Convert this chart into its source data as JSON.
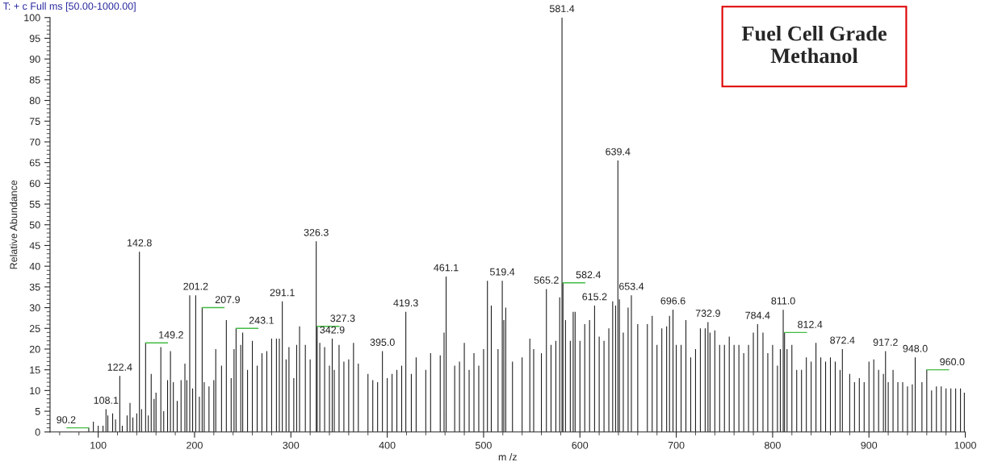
{
  "chart_data": {
    "type": "bar",
    "xlabel": "m /z",
    "ylabel": "Relative Abundance",
    "annotations": [
      "T: + c Full ms [50.00-1000.00]",
      "Fuel Cell Grade\nMethanol",
      {
        "text": "90.2",
        "x": 90.2,
        "y": 1
      },
      {
        "text": "108.1",
        "x": 108.1,
        "y": 5.5
      },
      {
        "text": "122.4",
        "x": 122.4,
        "y": 13.5
      },
      {
        "text": "142.8",
        "x": 142.8,
        "y": 43.5
      },
      {
        "text": "149.2",
        "x": 149.2,
        "y": 21.5
      },
      {
        "text": "201.2",
        "x": 201.2,
        "y": 33
      },
      {
        "text": "207.9",
        "x": 207.9,
        "y": 30
      },
      {
        "text": "243.1",
        "x": 243.1,
        "y": 25
      },
      {
        "text": "291.1",
        "x": 291.1,
        "y": 31.5
      },
      {
        "text": "326.3",
        "x": 326.3,
        "y": 46
      },
      {
        "text": "327.3",
        "x": 327.3,
        "y": 25.5
      },
      {
        "text": "342.9",
        "x": 342.9,
        "y": 22.5
      },
      {
        "text": "395.0",
        "x": 395.0,
        "y": 19.5
      },
      {
        "text": "419.3",
        "x": 419.3,
        "y": 29
      },
      {
        "text": "461.1",
        "x": 461.1,
        "y": 37.5
      },
      {
        "text": "519.4",
        "x": 519.4,
        "y": 36.5
      },
      {
        "text": "565.2",
        "x": 565.2,
        "y": 34.5
      },
      {
        "text": "581.4",
        "x": 581.4,
        "y": 100
      },
      {
        "text": "582.4",
        "x": 582.4,
        "y": 36
      },
      {
        "text": "615.2",
        "x": 615.2,
        "y": 30.5
      },
      {
        "text": "639.4",
        "x": 639.4,
        "y": 65.5
      },
      {
        "text": "653.4",
        "x": 653.4,
        "y": 33
      },
      {
        "text": "696.6",
        "x": 696.6,
        "y": 29.5
      },
      {
        "text": "732.9",
        "x": 732.9,
        "y": 26.5
      },
      {
        "text": "784.4",
        "x": 784.4,
        "y": 26
      },
      {
        "text": "811.0",
        "x": 811.0,
        "y": 29.5
      },
      {
        "text": "812.4",
        "x": 812.4,
        "y": 24
      },
      {
        "text": "872.4",
        "x": 872.4,
        "y": 20
      },
      {
        "text": "917.2",
        "x": 917.2,
        "y": 19.5
      },
      {
        "text": "948.0",
        "x": 948.0,
        "y": 18
      },
      {
        "text": "960.0",
        "x": 960.0,
        "y": 15
      }
    ],
    "xlim": [
      50,
      1000
    ],
    "ylim": [
      0,
      100
    ],
    "xticks": [
      100,
      200,
      300,
      400,
      500,
      600,
      700,
      800,
      900,
      1000
    ],
    "yticks": [
      0,
      5,
      10,
      15,
      20,
      25,
      30,
      35,
      40,
      45,
      50,
      55,
      60,
      65,
      70,
      75,
      80,
      85,
      90,
      95,
      100
    ],
    "series": [
      {
        "color": "#1a1a1a",
        "x": [
          90.2,
          95,
          100,
          105,
          108.1,
          110,
          115,
          118,
          122.4,
          125,
          130,
          133,
          136,
          140,
          142.8,
          145,
          149.2,
          152,
          155,
          158,
          160,
          165,
          168,
          172,
          175,
          178,
          182,
          186,
          190,
          192,
          195,
          198,
          201.2,
          205,
          207.9,
          210,
          215,
          220,
          222,
          228,
          233,
          238,
          241,
          243.1,
          248,
          250,
          255,
          260,
          265,
          270,
          275,
          280,
          285,
          288,
          291.1,
          295,
          298,
          303,
          306,
          309,
          315,
          320,
          326.3,
          327.3,
          330,
          335,
          340,
          342.9,
          345,
          350,
          355,
          360,
          365,
          370,
          380,
          385,
          390,
          395.0,
          400,
          405,
          410,
          415,
          419.3,
          425,
          430,
          440,
          445,
          455,
          459,
          461.1,
          470,
          475,
          480,
          485,
          490,
          495,
          500,
          504,
          508,
          515,
          519.4,
          521,
          523,
          530,
          540,
          548,
          552,
          560,
          565.2,
          570,
          575,
          579,
          581.4,
          582.4,
          585,
          590,
          593,
          595,
          600,
          605,
          610,
          615.2,
          620,
          625,
          630,
          634,
          637,
          639.4,
          641,
          645,
          650,
          653.4,
          660,
          670,
          675,
          680,
          685,
          690,
          693,
          696.6,
          700,
          705,
          710,
          715,
          720,
          725,
          730,
          732.9,
          735,
          740,
          745,
          750,
          755,
          760,
          765,
          770,
          775,
          780,
          784.4,
          790,
          795,
          800,
          805,
          808,
          811.0,
          812.4,
          815,
          820,
          825,
          830,
          835,
          840,
          845,
          850,
          855,
          860,
          865,
          870,
          872.4,
          880,
          885,
          890,
          895,
          900,
          905,
          910,
          915,
          917.2,
          920,
          925,
          930,
          935,
          940,
          945,
          948.0,
          955,
          960.0,
          965,
          970,
          975,
          980,
          985,
          990,
          995,
          999
        ],
        "values": [
          1,
          2.5,
          1.5,
          1.5,
          5.5,
          4,
          4.5,
          3,
          13.5,
          1.5,
          4,
          7,
          3.5,
          4.5,
          43.5,
          5.5,
          21.5,
          4,
          14,
          8,
          9.5,
          20.5,
          5,
          12.5,
          19.5,
          12,
          7.5,
          12.5,
          16.5,
          12.5,
          33,
          10.5,
          33,
          8.5,
          30,
          12,
          11,
          12.5,
          20,
          16,
          27,
          13,
          20,
          25,
          21,
          24,
          15,
          22,
          16,
          19,
          19.5,
          22.5,
          22.5,
          22.5,
          31.5,
          17.5,
          20.5,
          13,
          21,
          25.5,
          21,
          17.5,
          46,
          25.5,
          21.5,
          20.5,
          16,
          22.5,
          15,
          21,
          17,
          17.5,
          21.5,
          16.5,
          14,
          12.5,
          12,
          19.5,
          13,
          14,
          15,
          16,
          29,
          14,
          18,
          15,
          19,
          18.5,
          24,
          37.5,
          16,
          17,
          21.5,
          15,
          19,
          16,
          20,
          36.5,
          30.5,
          20,
          36.5,
          27,
          30,
          17,
          18,
          22.5,
          20,
          19,
          34.5,
          21,
          22,
          32.5,
          100,
          36,
          27,
          22,
          29,
          29,
          22,
          26,
          27,
          30.5,
          23,
          22,
          25,
          31.5,
          30.5,
          65.5,
          32,
          24,
          30,
          33,
          26,
          26,
          28,
          21,
          25,
          25.5,
          28,
          29.5,
          21,
          21,
          27,
          18,
          20,
          25,
          25,
          26.5,
          24,
          24.5,
          21,
          21,
          23,
          21,
          21,
          19,
          21,
          24,
          26,
          24,
          19,
          21,
          16,
          20,
          29.5,
          24,
          20,
          21,
          15,
          15,
          18,
          17,
          21.5,
          18,
          17,
          18,
          17,
          15,
          20,
          14,
          12,
          13,
          12,
          17,
          17.5,
          15,
          14,
          19.5,
          12,
          15,
          12,
          12,
          11,
          11.5,
          18,
          12,
          15,
          10,
          11,
          11,
          10.5,
          10.5,
          10.5,
          10.5,
          9.5
        ]
      }
    ]
  }
}
